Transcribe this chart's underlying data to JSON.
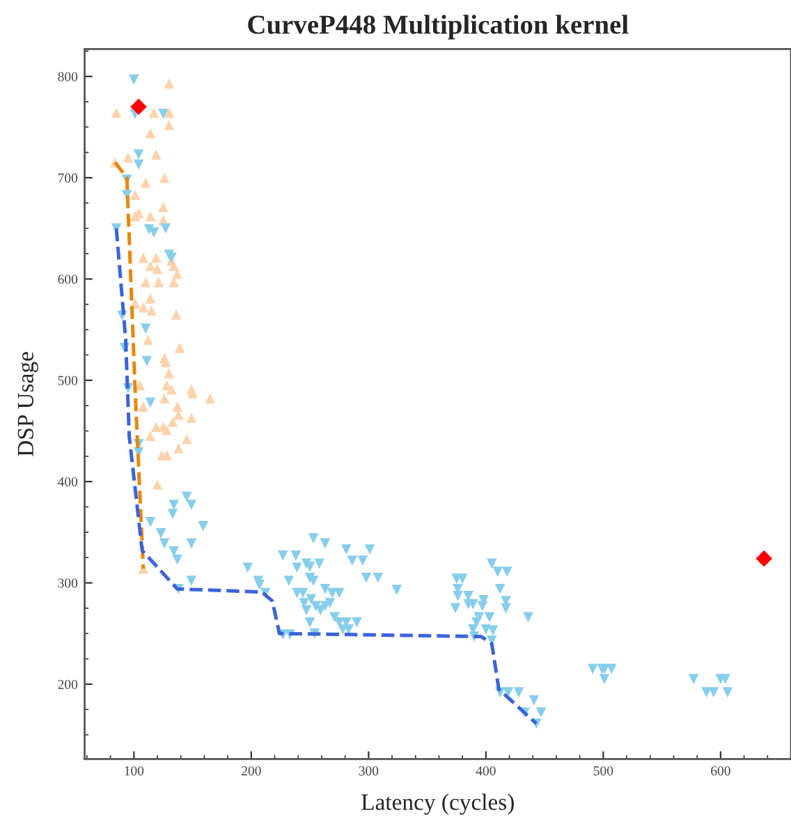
{
  "chart_data": {
    "type": "scatter",
    "title": "CurveP448 Multiplication kernel",
    "xlabel": "Latency (cycles)",
    "ylabel": "DSP Usage",
    "xlim": [
      58,
      660
    ],
    "ylim": [
      126,
      827
    ],
    "xticks": [
      {
        "value": 60,
        "label": null
      },
      {
        "value": 80,
        "label": null
      },
      100,
      {
        "value": 120,
        "label": null
      },
      {
        "value": 140,
        "label": null
      },
      {
        "value": 160,
        "label": null
      },
      {
        "value": 180,
        "label": null
      },
      200,
      {
        "value": 220,
        "label": null
      },
      {
        "value": 240,
        "label": null
      },
      {
        "value": 260,
        "label": null
      },
      {
        "value": 280,
        "label": null
      },
      300,
      {
        "value": 320,
        "label": null
      },
      {
        "value": 340,
        "label": null
      },
      {
        "value": 360,
        "label": null
      },
      {
        "value": 380,
        "label": null
      },
      400,
      {
        "value": 420,
        "label": null
      },
      {
        "value": 440,
        "label": null
      },
      {
        "value": 460,
        "label": null
      },
      {
        "value": 480,
        "label": null
      },
      500,
      {
        "value": 520,
        "label": null
      },
      {
        "value": 540,
        "label": null
      },
      {
        "value": 560,
        "label": null
      },
      {
        "value": 580,
        "label": null
      },
      600,
      {
        "value": 620,
        "label": null
      },
      {
        "value": 640,
        "label": null
      },
      {
        "value": 660,
        "label": null
      }
    ],
    "yticks": [
      {
        "value": 150,
        "label": null
      },
      {
        "value": 175,
        "label": null
      },
      200,
      {
        "value": 225,
        "label": null
      },
      {
        "value": 250,
        "label": null
      },
      {
        "value": 275,
        "label": null
      },
      300,
      {
        "value": 325,
        "label": null
      },
      {
        "value": 350,
        "label": null
      },
      {
        "value": 375,
        "label": null
      },
      400,
      {
        "value": 425,
        "label": null
      },
      {
        "value": 450,
        "label": null
      },
      {
        "value": 475,
        "label": null
      },
      500,
      {
        "value": 525,
        "label": null
      },
      {
        "value": 550,
        "label": null
      },
      {
        "value": 575,
        "label": null
      },
      600,
      {
        "value": 625,
        "label": null
      },
      {
        "value": 650,
        "label": null
      },
      {
        "value": 675,
        "label": null
      },
      700,
      {
        "value": 725,
        "label": null
      },
      {
        "value": 750,
        "label": null
      },
      {
        "value": 775,
        "label": null
      },
      800,
      {
        "value": 825,
        "label": null
      }
    ],
    "grid": false,
    "legend": false,
    "series": [
      {
        "marker": "triangle",
        "color": "#fdd3ad",
        "x": [
          130,
          85,
          117,
          130,
          130,
          114,
          95,
          119,
          84,
          110,
          126,
          101,
          125,
          101,
          104,
          114,
          125,
          108,
          119,
          114,
          120,
          132,
          134,
          137,
          134,
          110,
          121,
          114,
          101,
          108,
          115,
          136,
          112,
          139,
          126,
          127,
          130,
          105,
          128,
          132,
          149,
          150,
          165,
          126,
          108,
          137,
          138,
          133,
          149,
          119,
          125,
          128,
          114,
          145,
          138,
          124,
          128,
          120,
          108
        ],
        "values": [
          793,
          764,
          764,
          764,
          752,
          744,
          720,
          723,
          715,
          695,
          700,
          683,
          671,
          662,
          665,
          662,
          658,
          621,
          621,
          613,
          610,
          618,
          613,
          605,
          597,
          597,
          597,
          581,
          576,
          572,
          569,
          565,
          540,
          532,
          522,
          518,
          507,
          495,
          495,
          491,
          491,
          487,
          482,
          482,
          474,
          474,
          466,
          459,
          463,
          454,
          454,
          451,
          445,
          442,
          433,
          426,
          426,
          397,
          314
        ]
      },
      {
        "marker": "triangle_down",
        "color": "#87ceeb",
        "x": [
          100,
          101,
          125,
          104,
          104,
          94,
          94,
          85,
          113,
          117,
          127,
          130,
          132,
          90,
          110,
          92,
          111,
          95,
          114,
          104,
          104,
          145,
          134,
          149,
          133,
          159,
          114,
          123,
          126,
          149,
          134,
          137,
          149,
          138,
          197,
          206,
          207,
          212,
          253,
          263,
          227,
          238,
          247,
          250,
          258,
          239,
          281,
          301,
          286,
          295,
          298,
          308,
          324,
          232,
          250,
          253,
          239,
          244,
          263,
          269,
          275,
          251,
          245,
          255,
          263,
          267,
          247,
          259,
          271,
          275,
          250,
          281,
          290,
          278,
          283,
          227,
          233,
          254,
          405,
          410,
          418,
          375,
          380,
          376,
          412,
          376,
          385,
          398,
          417,
          374,
          385,
          389,
          397,
          417,
          436,
          394,
          403,
          392,
          389,
          400,
          406,
          390,
          405,
          412,
          419,
          428,
          441,
          433,
          447,
          443,
          491,
          499,
          501,
          507,
          501,
          577,
          600,
          604,
          588,
          594,
          606
        ],
        "values": [
          797,
          763,
          763,
          723,
          713,
          698,
          683,
          650,
          649,
          646,
          650,
          624,
          621,
          564,
          551,
          532,
          519,
          492,
          478,
          437,
          429,
          385,
          377,
          377,
          368,
          356,
          360,
          349,
          339,
          339,
          331,
          323,
          302,
          294,
          315,
          302,
          298,
          290,
          344,
          339,
          327,
          327,
          319,
          316,
          319,
          315,
          333,
          333,
          322,
          322,
          305,
          305,
          293,
          302,
          305,
          302,
          290,
          290,
          294,
          290,
          290,
          284,
          280,
          277,
          277,
          280,
          273,
          273,
          266,
          261,
          261,
          261,
          261,
          254,
          254,
          249,
          249,
          250,
          319,
          311,
          311,
          304,
          304,
          294,
          294,
          287,
          287,
          283,
          282,
          275,
          279,
          279,
          277,
          275,
          266,
          266,
          266,
          261,
          254,
          254,
          253,
          247,
          243,
          192,
          192,
          192,
          184,
          172,
          172,
          161,
          215,
          215,
          215,
          215,
          205,
          205,
          205,
          205,
          192,
          192,
          192
        ]
      },
      {
        "marker": "diamond",
        "color": "#ff0000",
        "x": [
          104,
          637
        ],
        "values": [
          770,
          324
        ]
      },
      {
        "type": "line",
        "marker": "none",
        "line_style": "dashed",
        "color": "#e8870c",
        "x": [
          84,
          94,
          101,
          108
        ],
        "values": [
          715,
          700,
          491,
          314
        ]
      },
      {
        "type": "line",
        "marker": "none",
        "line_style": "dashed",
        "color": "#3b63db",
        "x": [
          85,
          93,
          96,
          107,
          137,
          209,
          218,
          224,
          396,
          405,
          411,
          443
        ],
        "values": [
          650,
          540,
          445,
          332,
          294,
          291,
          282,
          250,
          247,
          240,
          195,
          161
        ]
      }
    ]
  }
}
